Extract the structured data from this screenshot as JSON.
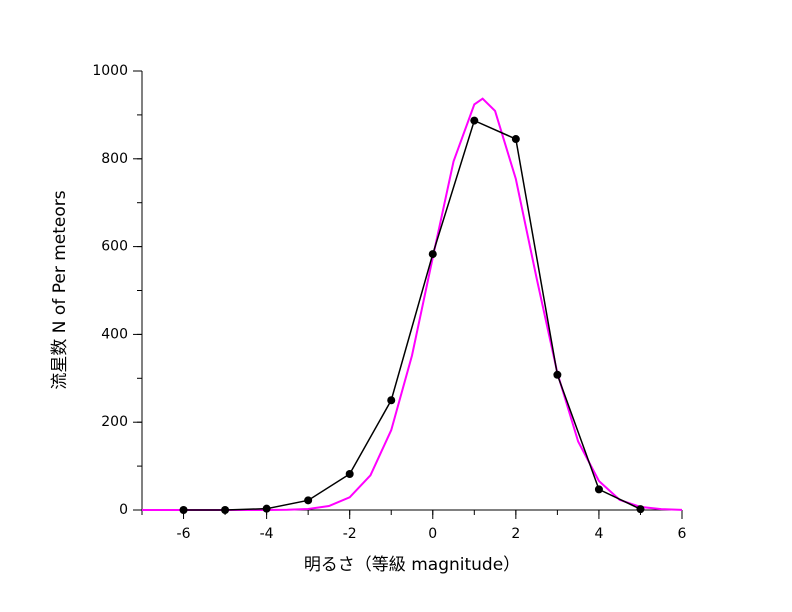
{
  "chart_data": {
    "type": "line",
    "xlabel": "明るさ（等級 magnitude）",
    "ylabel": "流星数 N of Per meteors",
    "series": [
      {
        "color": "#ff00ff",
        "marker": false,
        "x": [
          -7,
          -6,
          -5,
          -4,
          -3.5,
          -3,
          -2.5,
          -2,
          -1.5,
          -1,
          -0.5,
          0,
          0.5,
          1,
          1.2,
          1.5,
          2,
          2.5,
          3,
          3.5,
          4,
          4.5,
          5,
          5.5,
          6
        ],
        "values": [
          0,
          0,
          0,
          0.1,
          0.5,
          2.4,
          9,
          29,
          79,
          182,
          352,
          575,
          794,
          924,
          937,
          909,
          754,
          528,
          312,
          156,
          66,
          23,
          7,
          2,
          0.4
        ]
      },
      {
        "color": "#000000",
        "marker": true,
        "x": [
          -6,
          -5,
          -4,
          -3,
          -2,
          -1,
          0,
          1,
          2,
          3,
          4,
          5
        ],
        "values": [
          0,
          0,
          3,
          22,
          82,
          250,
          583,
          887,
          845,
          308,
          47,
          2
        ]
      }
    ],
    "xlim": [
      -7,
      6
    ],
    "xticks": [
      -6,
      -4,
      -2,
      0,
      2,
      4,
      6
    ],
    "xminorticks": [
      -7,
      -6,
      -5,
      -4,
      -3,
      -2,
      -1,
      0,
      1,
      2,
      3,
      4,
      5,
      6
    ],
    "ylim": [
      0,
      1000
    ],
    "yticks": [
      0,
      200,
      400,
      600,
      800,
      1000
    ],
    "yminorticks": [
      0,
      100,
      200,
      300,
      400,
      500,
      600,
      700,
      800,
      900,
      1000
    ],
    "grid": false
  }
}
